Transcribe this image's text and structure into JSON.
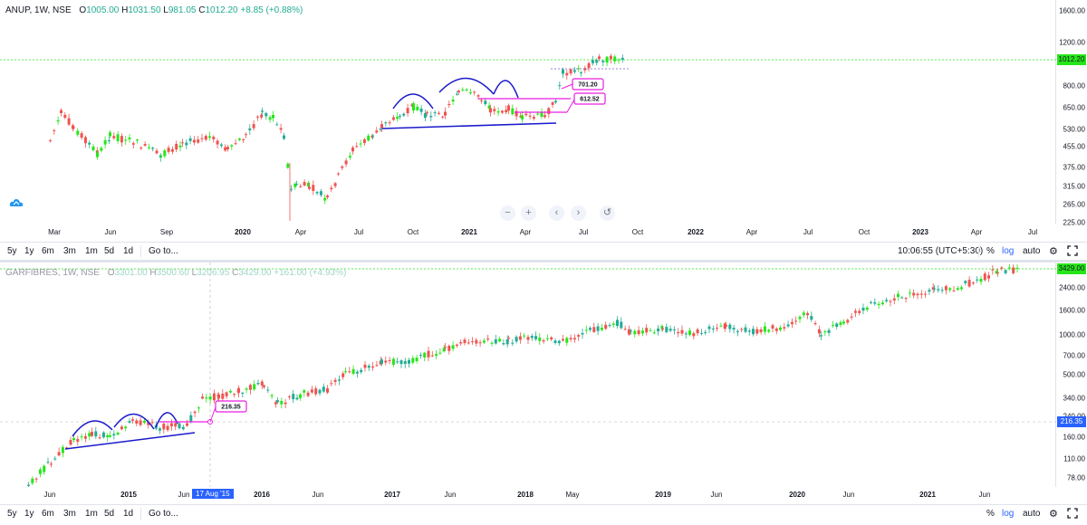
{
  "panel1": {
    "symbol": "ANUP, 1W, NSE",
    "ohlc": {
      "o_label": "O",
      "o": "1005.00",
      "h_label": "H",
      "h": "1031.50",
      "l_label": "L",
      "l": "981.05",
      "c_label": "C",
      "c": "1012.20",
      "change": "+8.85 (+0.88%)"
    },
    "last_price": "1012.20",
    "price_ticks": [
      "1600.00",
      "1200.00",
      "1000.00",
      "800.00",
      "650.00",
      "530.00",
      "455.00",
      "375.00",
      "315.00",
      "265.00",
      "225.00"
    ],
    "time_ticks": [
      {
        "label": "Mar",
        "bold": false
      },
      {
        "label": "Jun",
        "bold": false
      },
      {
        "label": "Sep",
        "bold": false
      },
      {
        "label": "2020",
        "bold": true
      },
      {
        "label": "Apr",
        "bold": false
      },
      {
        "label": "Jul",
        "bold": false
      },
      {
        "label": "Oct",
        "bold": false
      },
      {
        "label": "2021",
        "bold": true
      },
      {
        "label": "Apr",
        "bold": false
      },
      {
        "label": "Jul",
        "bold": false
      },
      {
        "label": "Oct",
        "bold": false
      },
      {
        "label": "2022",
        "bold": true
      },
      {
        "label": "Apr",
        "bold": false
      },
      {
        "label": "Jul",
        "bold": false
      },
      {
        "label": "Oct",
        "bold": false
      },
      {
        "label": "2023",
        "bold": true
      },
      {
        "label": "Apr",
        "bold": false
      },
      {
        "label": "Jul",
        "bold": false
      }
    ],
    "callouts": [
      "701.20",
      "612.52"
    ],
    "nav": {
      "zoom_out": "−",
      "zoom_in": "+",
      "left": "‹",
      "right": "›",
      "reset": "↺"
    },
    "toolbar": {
      "ranges": [
        "5y",
        "1y",
        "6m",
        "3m",
        "1m",
        "5d",
        "1d"
      ],
      "goto": "Go to...",
      "time": "10:06:55 (UTC+5:30)",
      "pct": "%",
      "log": "log",
      "auto": "auto"
    }
  },
  "panel2": {
    "symbol": "GARFIBRES, 1W, NSE",
    "ohlc": {
      "o_label": "O",
      "o": "3301.00",
      "h_label": "H",
      "h": "3500.60",
      "l_label": "L",
      "l": "3206.95",
      "c_label": "C",
      "c": "3429.00",
      "change": "+161.00 (+4.93%)"
    },
    "last_price": "3429.00",
    "crosshair_price": "216.35",
    "crosshair_date": "17 Aug '15",
    "price_ticks": [
      "2400.00",
      "1600.00",
      "1000.00",
      "700.00",
      "500.00",
      "340.00",
      "240.00",
      "160.00",
      "110.00",
      "78.00"
    ],
    "time_ticks": [
      {
        "label": "Jun",
        "bold": false
      },
      {
        "label": "2015",
        "bold": true
      },
      {
        "label": "Jun",
        "bold": false
      },
      {
        "label": "2016",
        "bold": true
      },
      {
        "label": "Jun",
        "bold": false
      },
      {
        "label": "2017",
        "bold": true
      },
      {
        "label": "Jun",
        "bold": false
      },
      {
        "label": "2018",
        "bold": true
      },
      {
        "label": "May",
        "bold": false
      },
      {
        "label": "2019",
        "bold": true
      },
      {
        "label": "Jun",
        "bold": false
      },
      {
        "label": "2020",
        "bold": true
      },
      {
        "label": "Jun",
        "bold": false
      },
      {
        "label": "2021",
        "bold": true
      },
      {
        "label": "Jun",
        "bold": false
      }
    ],
    "callouts": [
      "216.35"
    ],
    "toolbar": {
      "ranges": [
        "5y",
        "1y",
        "6m",
        "3m",
        "1m",
        "5d",
        "1d"
      ],
      "goto": "Go to...",
      "pct": "%",
      "log": "log",
      "auto": "auto"
    }
  },
  "colors": {
    "up": "#22ab94",
    "up_bright": "#26e619",
    "down": "#ef5350",
    "trend": "#1a1acc",
    "callout": "#e91ee0",
    "grid": "#f0f3fa"
  },
  "icons": {
    "settings": "gear-icon",
    "fullscreen": "fullscreen-icon",
    "logo": "cloud-logo-icon"
  }
}
